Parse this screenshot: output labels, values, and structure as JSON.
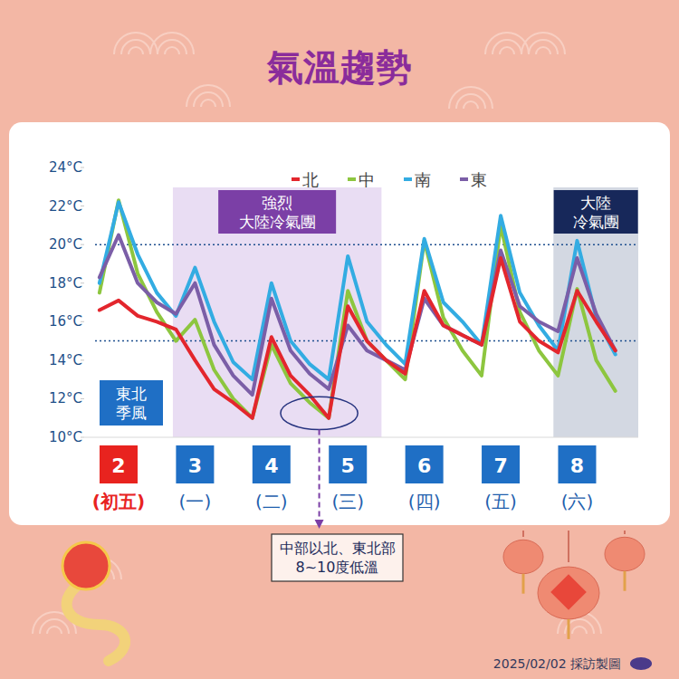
{
  "chart_data": {
    "type": "line",
    "title": "氣溫趨勢",
    "x": [
      1.75,
      2,
      2.25,
      2.5,
      2.75,
      3,
      3.25,
      3.5,
      3.75,
      4,
      4.25,
      4.5,
      4.75,
      5,
      5.25,
      5.5,
      5.75,
      6,
      6.25,
      6.5,
      6.75,
      7,
      7.25,
      7.5,
      7.75,
      8,
      8.25,
      8.5
    ],
    "series": [
      {
        "name": "北",
        "color": "#e3262d",
        "values": [
          16.6,
          17.1,
          16.3,
          16.0,
          15.6,
          14.0,
          12.5,
          11.8,
          11.0,
          15.2,
          13.2,
          12.2,
          11.0,
          16.8,
          15.0,
          14.0,
          13.3,
          17.6,
          15.8,
          15.3,
          14.8,
          19.3,
          16.0,
          15.0,
          14.4,
          17.6,
          16.0,
          14.5
        ]
      },
      {
        "name": "中",
        "color": "#8dc63f",
        "values": [
          17.5,
          22.3,
          18.5,
          16.5,
          15.0,
          16.1,
          13.5,
          12.0,
          11.0,
          14.8,
          12.8,
          11.8,
          11.0,
          17.6,
          15.0,
          14.0,
          13.0,
          20.2,
          16.2,
          14.5,
          13.2,
          21.0,
          16.5,
          14.5,
          13.2,
          17.7,
          14.0,
          12.4
        ]
      },
      {
        "name": "南",
        "color": "#33ace2",
        "values": [
          18.0,
          22.2,
          19.5,
          17.5,
          16.3,
          18.8,
          16.0,
          13.9,
          13.0,
          18.0,
          15.0,
          13.8,
          13.0,
          19.4,
          16.0,
          14.8,
          13.8,
          20.3,
          17.0,
          16.0,
          14.8,
          21.5,
          17.5,
          15.8,
          14.5,
          20.2,
          16.2,
          14.3
        ]
      },
      {
        "name": "東",
        "color": "#7b5ea7",
        "values": [
          18.3,
          20.5,
          18.0,
          17.0,
          16.4,
          18.0,
          14.8,
          13.2,
          12.2,
          17.2,
          14.5,
          13.3,
          12.5,
          15.8,
          14.5,
          14.0,
          13.5,
          17.2,
          15.8,
          15.3,
          14.8,
          19.7,
          16.8,
          16.0,
          15.5,
          19.3,
          16.4,
          14.5
        ]
      }
    ],
    "xlim": [
      1.55,
      8.8
    ],
    "xticks": [
      2,
      3,
      4,
      5,
      6,
      7,
      8
    ],
    "x_sublabels": [
      "(初五)",
      "(一)",
      "(二)",
      "(三)",
      "(四)",
      "(五)",
      "(六)"
    ],
    "ylim": [
      10,
      24
    ],
    "yticks": [
      {
        "value": 10,
        "label": "10°C"
      },
      {
        "value": 12,
        "label": "12°C"
      },
      {
        "value": 14,
        "label": "14°C"
      },
      {
        "value": 16,
        "label": "16°C"
      },
      {
        "value": 18,
        "label": "18°C"
      },
      {
        "value": 20,
        "label": "20°C"
      },
      {
        "value": 22,
        "label": "22°C"
      },
      {
        "value": 24,
        "label": "24°C"
      }
    ],
    "grid": false,
    "legend": "top",
    "reference_lines": [
      20,
      15
    ],
    "regions": [
      {
        "label": "強烈\n大陸冷氣團",
        "x": [
          2.71,
          5.44
        ]
      },
      {
        "label": "大陸\n冷氣團",
        "x": [
          7.69,
          8.8
        ]
      }
    ],
    "annotations": [
      {
        "text": "東北\n季風"
      },
      {
        "text": "中部以北、東北部\n8~10度低溫",
        "x": [
          4.12,
          5.13
        ],
        "y": [
          10.4,
          12.1
        ]
      }
    ],
    "footer": "2025/02/02 採訪製圖"
  }
}
